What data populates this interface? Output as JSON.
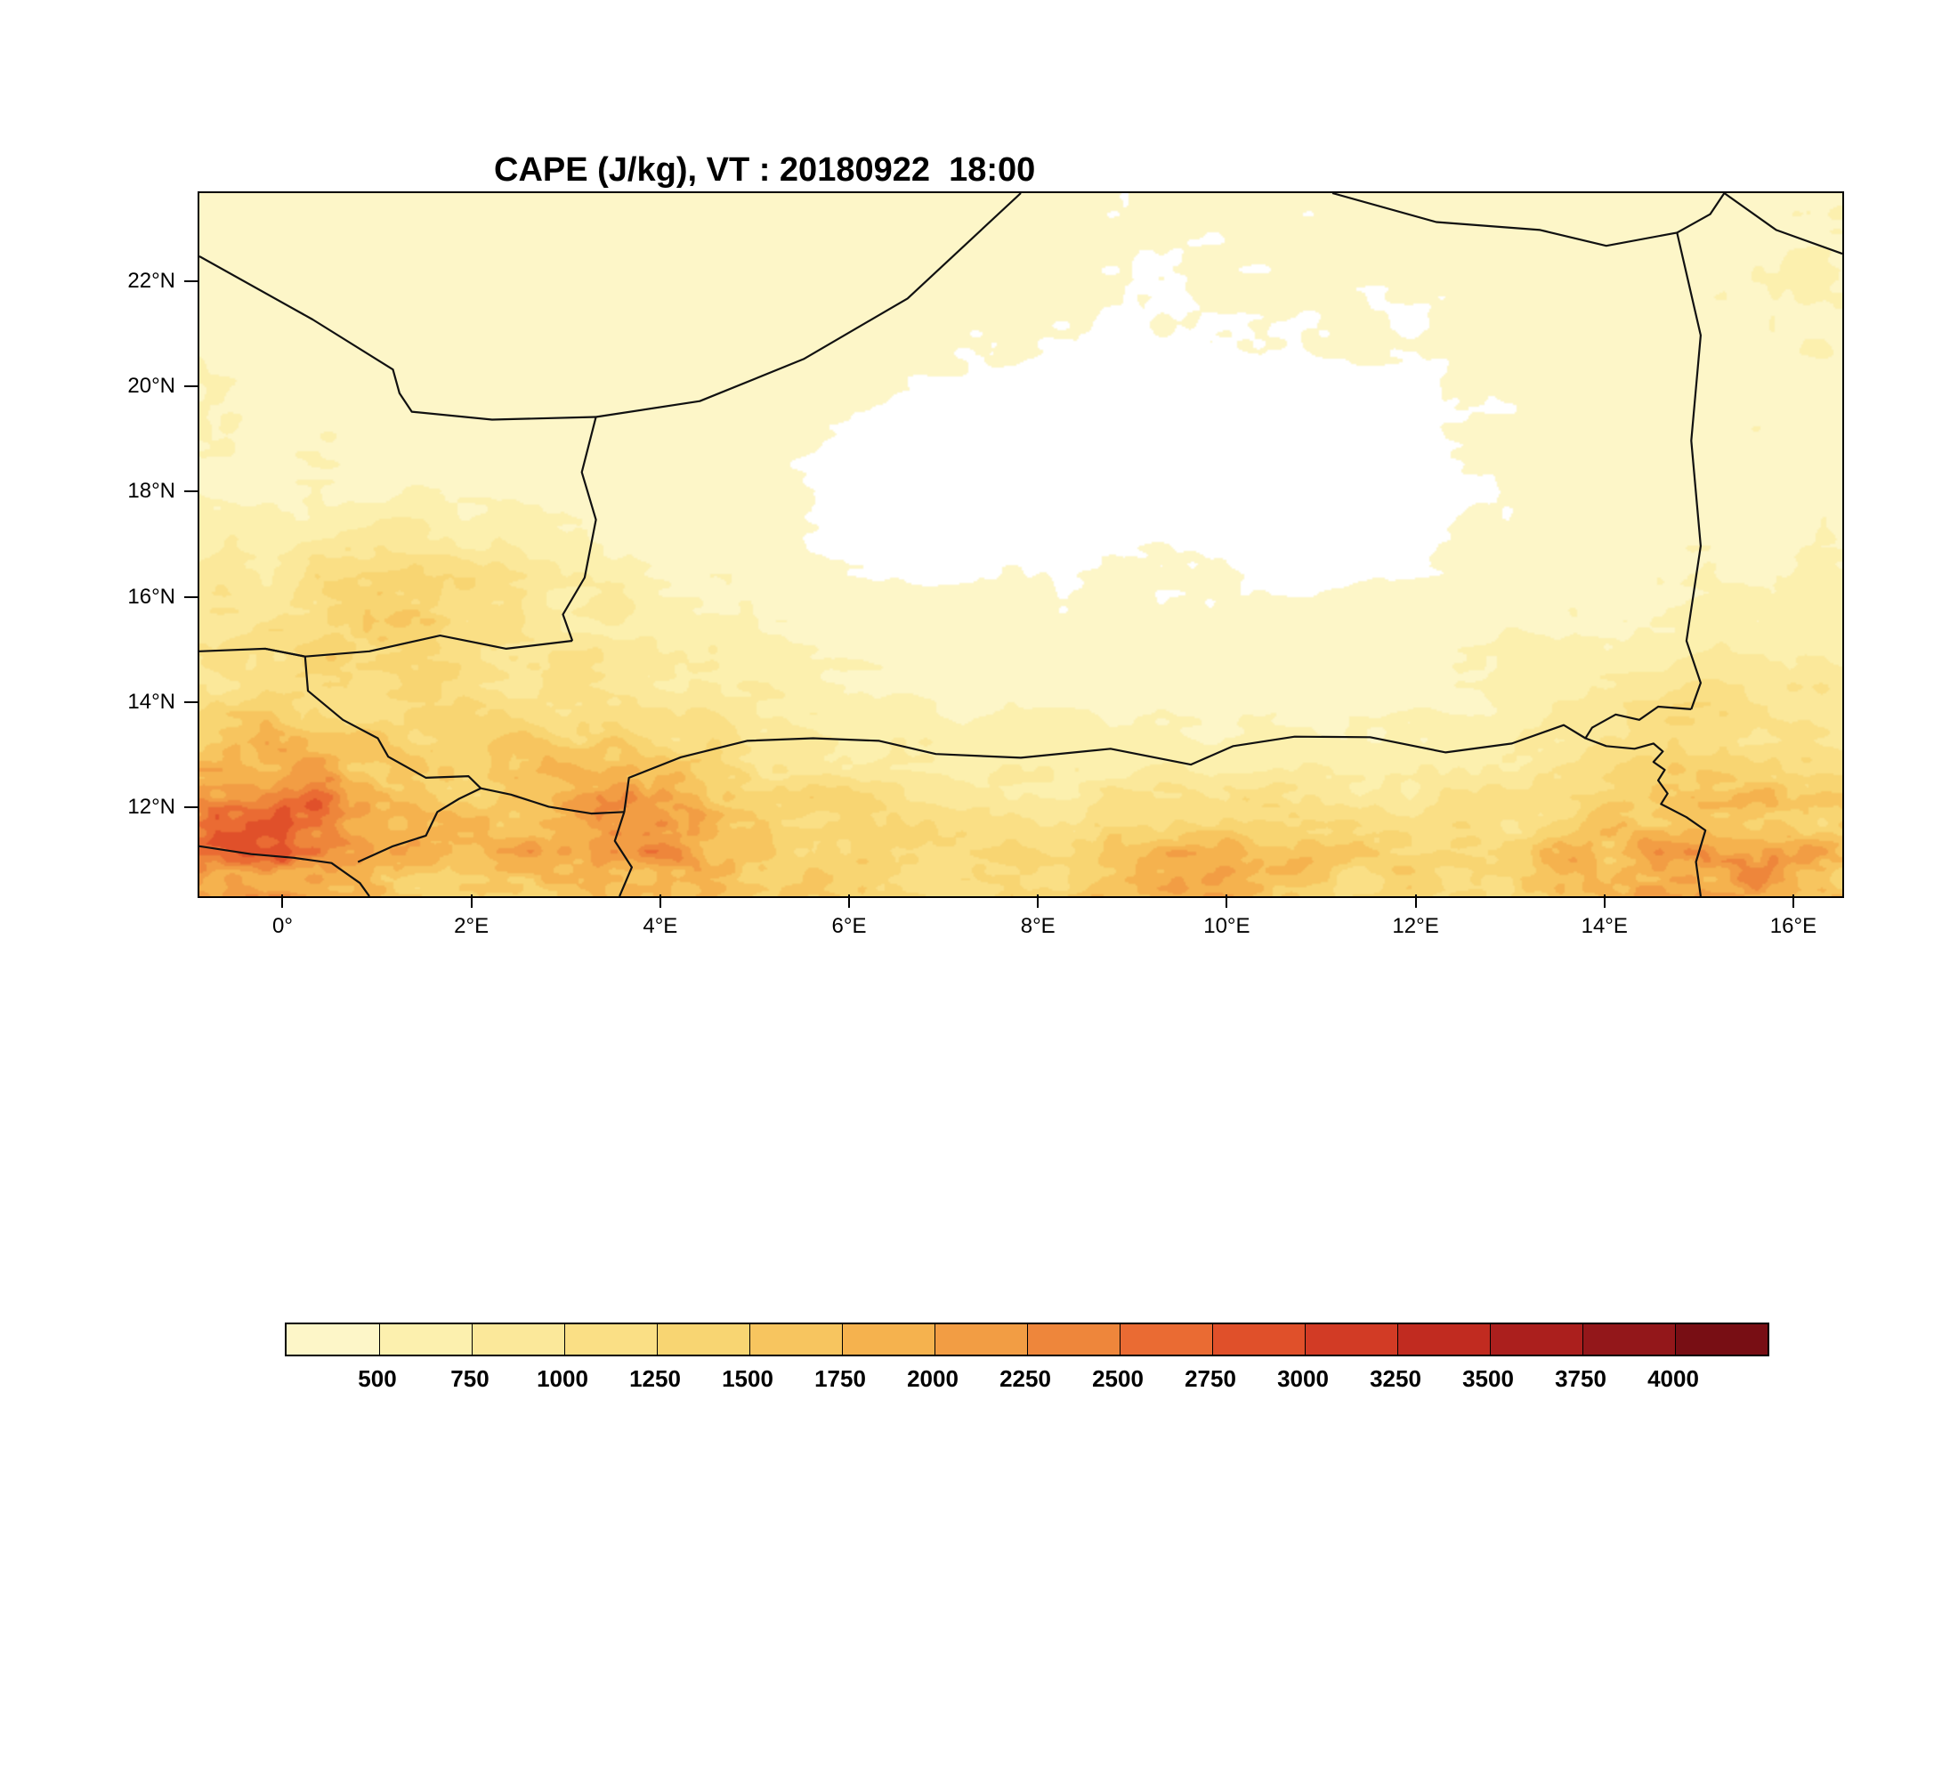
{
  "title": "CAPE (J/kg), VT : 20180922  18:00",
  "chart_data": {
    "type": "heatmap",
    "field_name": "CAPE",
    "units": "J/kg",
    "valid_time": "20180922 18:00",
    "title": "CAPE (J/kg), VT : 20180922  18:00",
    "lon_range": [
      -0.9,
      16.5
    ],
    "lat_range": [
      10.35,
      23.7
    ],
    "xticks": [
      {
        "lon": 0,
        "label": "0°"
      },
      {
        "lon": 2,
        "label": "2°E"
      },
      {
        "lon": 4,
        "label": "4°E"
      },
      {
        "lon": 6,
        "label": "6°E"
      },
      {
        "lon": 8,
        "label": "8°E"
      },
      {
        "lon": 10,
        "label": "10°E"
      },
      {
        "lon": 12,
        "label": "12°E"
      },
      {
        "lon": 14,
        "label": "14°E"
      },
      {
        "lon": 16,
        "label": "16°E"
      }
    ],
    "yticks": [
      {
        "lat": 12,
        "label": "12°N"
      },
      {
        "lat": 14,
        "label": "14°N"
      },
      {
        "lat": 16,
        "label": "16°N"
      },
      {
        "lat": 18,
        "label": "18°N"
      },
      {
        "lat": 20,
        "label": "20°N"
      },
      {
        "lat": 22,
        "label": "22°N"
      }
    ],
    "colorbar": {
      "levels": [
        500,
        750,
        1000,
        1250,
        1500,
        1750,
        2000,
        2250,
        2500,
        2750,
        3000,
        3250,
        3500,
        3750,
        4000
      ],
      "colors": [
        "#fdf6c8",
        "#fcf0ae",
        "#fbe89a",
        "#fadf85",
        "#f8d572",
        "#f7c55f",
        "#f5b24e",
        "#f29d44",
        "#ee863b",
        "#ea6b33",
        "#e0502a",
        "#d23b25",
        "#c12b20",
        "#ab1f1d",
        "#93171a",
        "#780e14"
      ],
      "below_threshold_value": 200,
      "below_threshold_color": "#ffffff"
    },
    "grid": {
      "comment": "Approximate CAPE (J/kg) on 1-degree grid; rows ordered north (lat 24) to south (lat 10)",
      "lons": [
        -1,
        0,
        1,
        2,
        3,
        4,
        5,
        6,
        7,
        8,
        9,
        10,
        11,
        12,
        13,
        14,
        15,
        16,
        17
      ],
      "lats": [
        24,
        23,
        22,
        21,
        20,
        19,
        18,
        17,
        16,
        15,
        14,
        13,
        12,
        11,
        10
      ],
      "values": [
        [
          350,
          350,
          350,
          350,
          350,
          330,
          300,
          300,
          260,
          250,
          250,
          250,
          280,
          300,
          300,
          350,
          380,
          420,
          420
        ],
        [
          380,
          360,
          350,
          350,
          350,
          330,
          300,
          280,
          260,
          250,
          240,
          240,
          250,
          260,
          300,
          350,
          400,
          450,
          460
        ],
        [
          400,
          380,
          360,
          350,
          350,
          340,
          300,
          280,
          250,
          210,
          200,
          230,
          250,
          250,
          300,
          350,
          400,
          460,
          500
        ],
        [
          420,
          400,
          380,
          360,
          350,
          340,
          300,
          260,
          230,
          200,
          160,
          200,
          230,
          210,
          260,
          340,
          400,
          450,
          480
        ],
        [
          450,
          420,
          400,
          380,
          360,
          340,
          300,
          240,
          190,
          150,
          110,
          150,
          160,
          160,
          250,
          340,
          390,
          430,
          450
        ],
        [
          460,
          450,
          420,
          400,
          380,
          350,
          290,
          160,
          110,
          100,
          100,
          100,
          110,
          150,
          250,
          340,
          390,
          410,
          430
        ],
        [
          500,
          470,
          450,
          430,
          400,
          350,
          250,
          110,
          60,
          90,
          100,
          90,
          60,
          100,
          250,
          340,
          390,
          400,
          440
        ],
        [
          620,
          700,
          900,
          800,
          520,
          420,
          300,
          150,
          90,
          140,
          190,
          140,
          100,
          150,
          300,
          390,
          440,
          450,
          490
        ],
        [
          820,
          1000,
          1450,
          1350,
          820,
          620,
          450,
          300,
          250,
          250,
          260,
          250,
          250,
          300,
          360,
          450,
          550,
          600,
          600
        ],
        [
          950,
          1150,
          1400,
          1200,
          950,
          850,
          620,
          400,
          310,
          300,
          300,
          310,
          350,
          400,
          460,
          560,
          700,
          720,
          660
        ],
        [
          1150,
          1250,
          1300,
          1100,
          1050,
          950,
          820,
          600,
          450,
          420,
          400,
          400,
          360,
          420,
          520,
          820,
          1150,
          1050,
          820
        ],
        [
          1650,
          1850,
          1550,
          1350,
          1650,
          1550,
          1050,
          820,
          700,
          620,
          600,
          620,
          620,
          720,
          820,
          1100,
          1300,
          1250,
          1050
        ],
        [
          2450,
          2650,
          1950,
          1650,
          2250,
          2450,
          1550,
          1250,
          1000,
          950,
          1050,
          1250,
          1150,
          950,
          1100,
          1500,
          1850,
          1550,
          1400
        ],
        [
          2250,
          2450,
          1750,
          1550,
          1950,
          2150,
          1650,
          1350,
          1250,
          1350,
          1650,
          1950,
          1450,
          1250,
          1350,
          1950,
          2250,
          1850,
          1650
        ],
        [
          1850,
          2050,
          1550,
          1350,
          1650,
          1750,
          1450,
          1250,
          1150,
          1350,
          1750,
          2050,
          1350,
          1150,
          1350,
          2050,
          2350,
          1750,
          1550
        ]
      ]
    },
    "borders": [
      [
        [
          -0.9,
          22.5
        ],
        [
          0.3,
          21.3
        ],
        [
          1.15,
          20.35
        ],
        [
          1.22,
          19.9
        ],
        [
          1.35,
          19.55
        ],
        [
          2.2,
          19.4
        ],
        [
          3.3,
          19.45
        ]
      ],
      [
        [
          3.3,
          19.45
        ],
        [
          4.4,
          19.75
        ],
        [
          5.5,
          20.55
        ],
        [
          6.6,
          21.7
        ],
        [
          7.8,
          23.7
        ]
      ],
      [
        [
          11.1,
          23.7
        ],
        [
          12.2,
          23.15
        ],
        [
          13.3,
          23.0
        ],
        [
          14.0,
          22.7
        ],
        [
          14.75,
          22.95
        ],
        [
          15.1,
          23.3
        ],
        [
          15.25,
          23.7
        ]
      ],
      [
        [
          15.25,
          23.7
        ],
        [
          15.8,
          23.0
        ],
        [
          16.5,
          22.55
        ]
      ],
      [
        [
          14.75,
          22.95
        ],
        [
          15.0,
          21.0
        ],
        [
          14.9,
          19.0
        ],
        [
          15.0,
          17.0
        ],
        [
          14.85,
          15.2
        ],
        [
          15.0,
          14.4
        ],
        [
          14.9,
          13.9
        ]
      ],
      [
        [
          14.9,
          13.9
        ],
        [
          14.55,
          13.95
        ],
        [
          14.35,
          13.7
        ],
        [
          14.1,
          13.8
        ],
        [
          13.85,
          13.55
        ],
        [
          13.78,
          13.35
        ],
        [
          14.0,
          13.2
        ],
        [
          14.3,
          13.15
        ],
        [
          14.5,
          13.25
        ],
        [
          14.6,
          13.1
        ],
        [
          14.5,
          12.9
        ],
        [
          14.62,
          12.75
        ],
        [
          14.55,
          12.55
        ],
        [
          14.65,
          12.3
        ],
        [
          14.58,
          12.1
        ],
        [
          14.85,
          11.85
        ],
        [
          15.05,
          11.6
        ],
        [
          14.95,
          11.0
        ],
        [
          15.0,
          10.35
        ]
      ],
      [
        [
          3.6,
          11.95
        ],
        [
          3.65,
          12.6
        ],
        [
          4.2,
          12.99
        ],
        [
          4.9,
          13.3
        ],
        [
          5.6,
          13.35
        ],
        [
          6.3,
          13.3
        ],
        [
          6.9,
          13.05
        ],
        [
          7.8,
          12.98
        ],
        [
          8.75,
          13.15
        ],
        [
          9.6,
          12.85
        ],
        [
          10.05,
          13.2
        ],
        [
          10.7,
          13.38
        ],
        [
          11.5,
          13.37
        ],
        [
          12.3,
          13.08
        ],
        [
          13.0,
          13.25
        ],
        [
          13.55,
          13.6
        ],
        [
          13.78,
          13.35
        ]
      ],
      [
        [
          3.6,
          11.95
        ],
        [
          3.5,
          11.4
        ],
        [
          3.68,
          10.9
        ],
        [
          3.55,
          10.35
        ]
      ],
      [
        [
          3.6,
          11.95
        ],
        [
          3.25,
          11.92
        ],
        [
          2.8,
          12.05
        ],
        [
          2.4,
          12.28
        ],
        [
          2.08,
          12.4
        ]
      ],
      [
        [
          2.08,
          12.4
        ],
        [
          1.95,
          12.63
        ],
        [
          1.5,
          12.6
        ],
        [
          1.1,
          13.0
        ],
        [
          0.99,
          13.35
        ],
        [
          0.62,
          13.7
        ],
        [
          0.25,
          14.25
        ],
        [
          0.22,
          14.9
        ],
        [
          -0.2,
          15.05
        ]
      ],
      [
        [
          3.3,
          19.45
        ],
        [
          3.15,
          18.4
        ],
        [
          3.3,
          17.5
        ],
        [
          3.18,
          16.4
        ],
        [
          2.95,
          15.7
        ],
        [
          3.05,
          15.2
        ]
      ],
      [
        [
          3.05,
          15.2
        ],
        [
          2.35,
          15.05
        ],
        [
          1.65,
          15.3
        ],
        [
          0.9,
          15.0
        ],
        [
          0.22,
          14.9
        ],
        [
          -0.2,
          15.05
        ],
        [
          -0.9,
          15.0
        ]
      ],
      [
        [
          -0.9,
          11.3
        ],
        [
          -0.35,
          11.15
        ],
        [
          0.1,
          11.08
        ],
        [
          0.5,
          10.98
        ],
        [
          0.8,
          10.6
        ],
        [
          0.9,
          10.35
        ]
      ],
      [
        [
          0.78,
          11.0
        ],
        [
          1.15,
          11.3
        ],
        [
          1.5,
          11.5
        ],
        [
          1.62,
          11.95
        ],
        [
          1.85,
          12.2
        ],
        [
          2.08,
          12.4
        ]
      ]
    ]
  }
}
